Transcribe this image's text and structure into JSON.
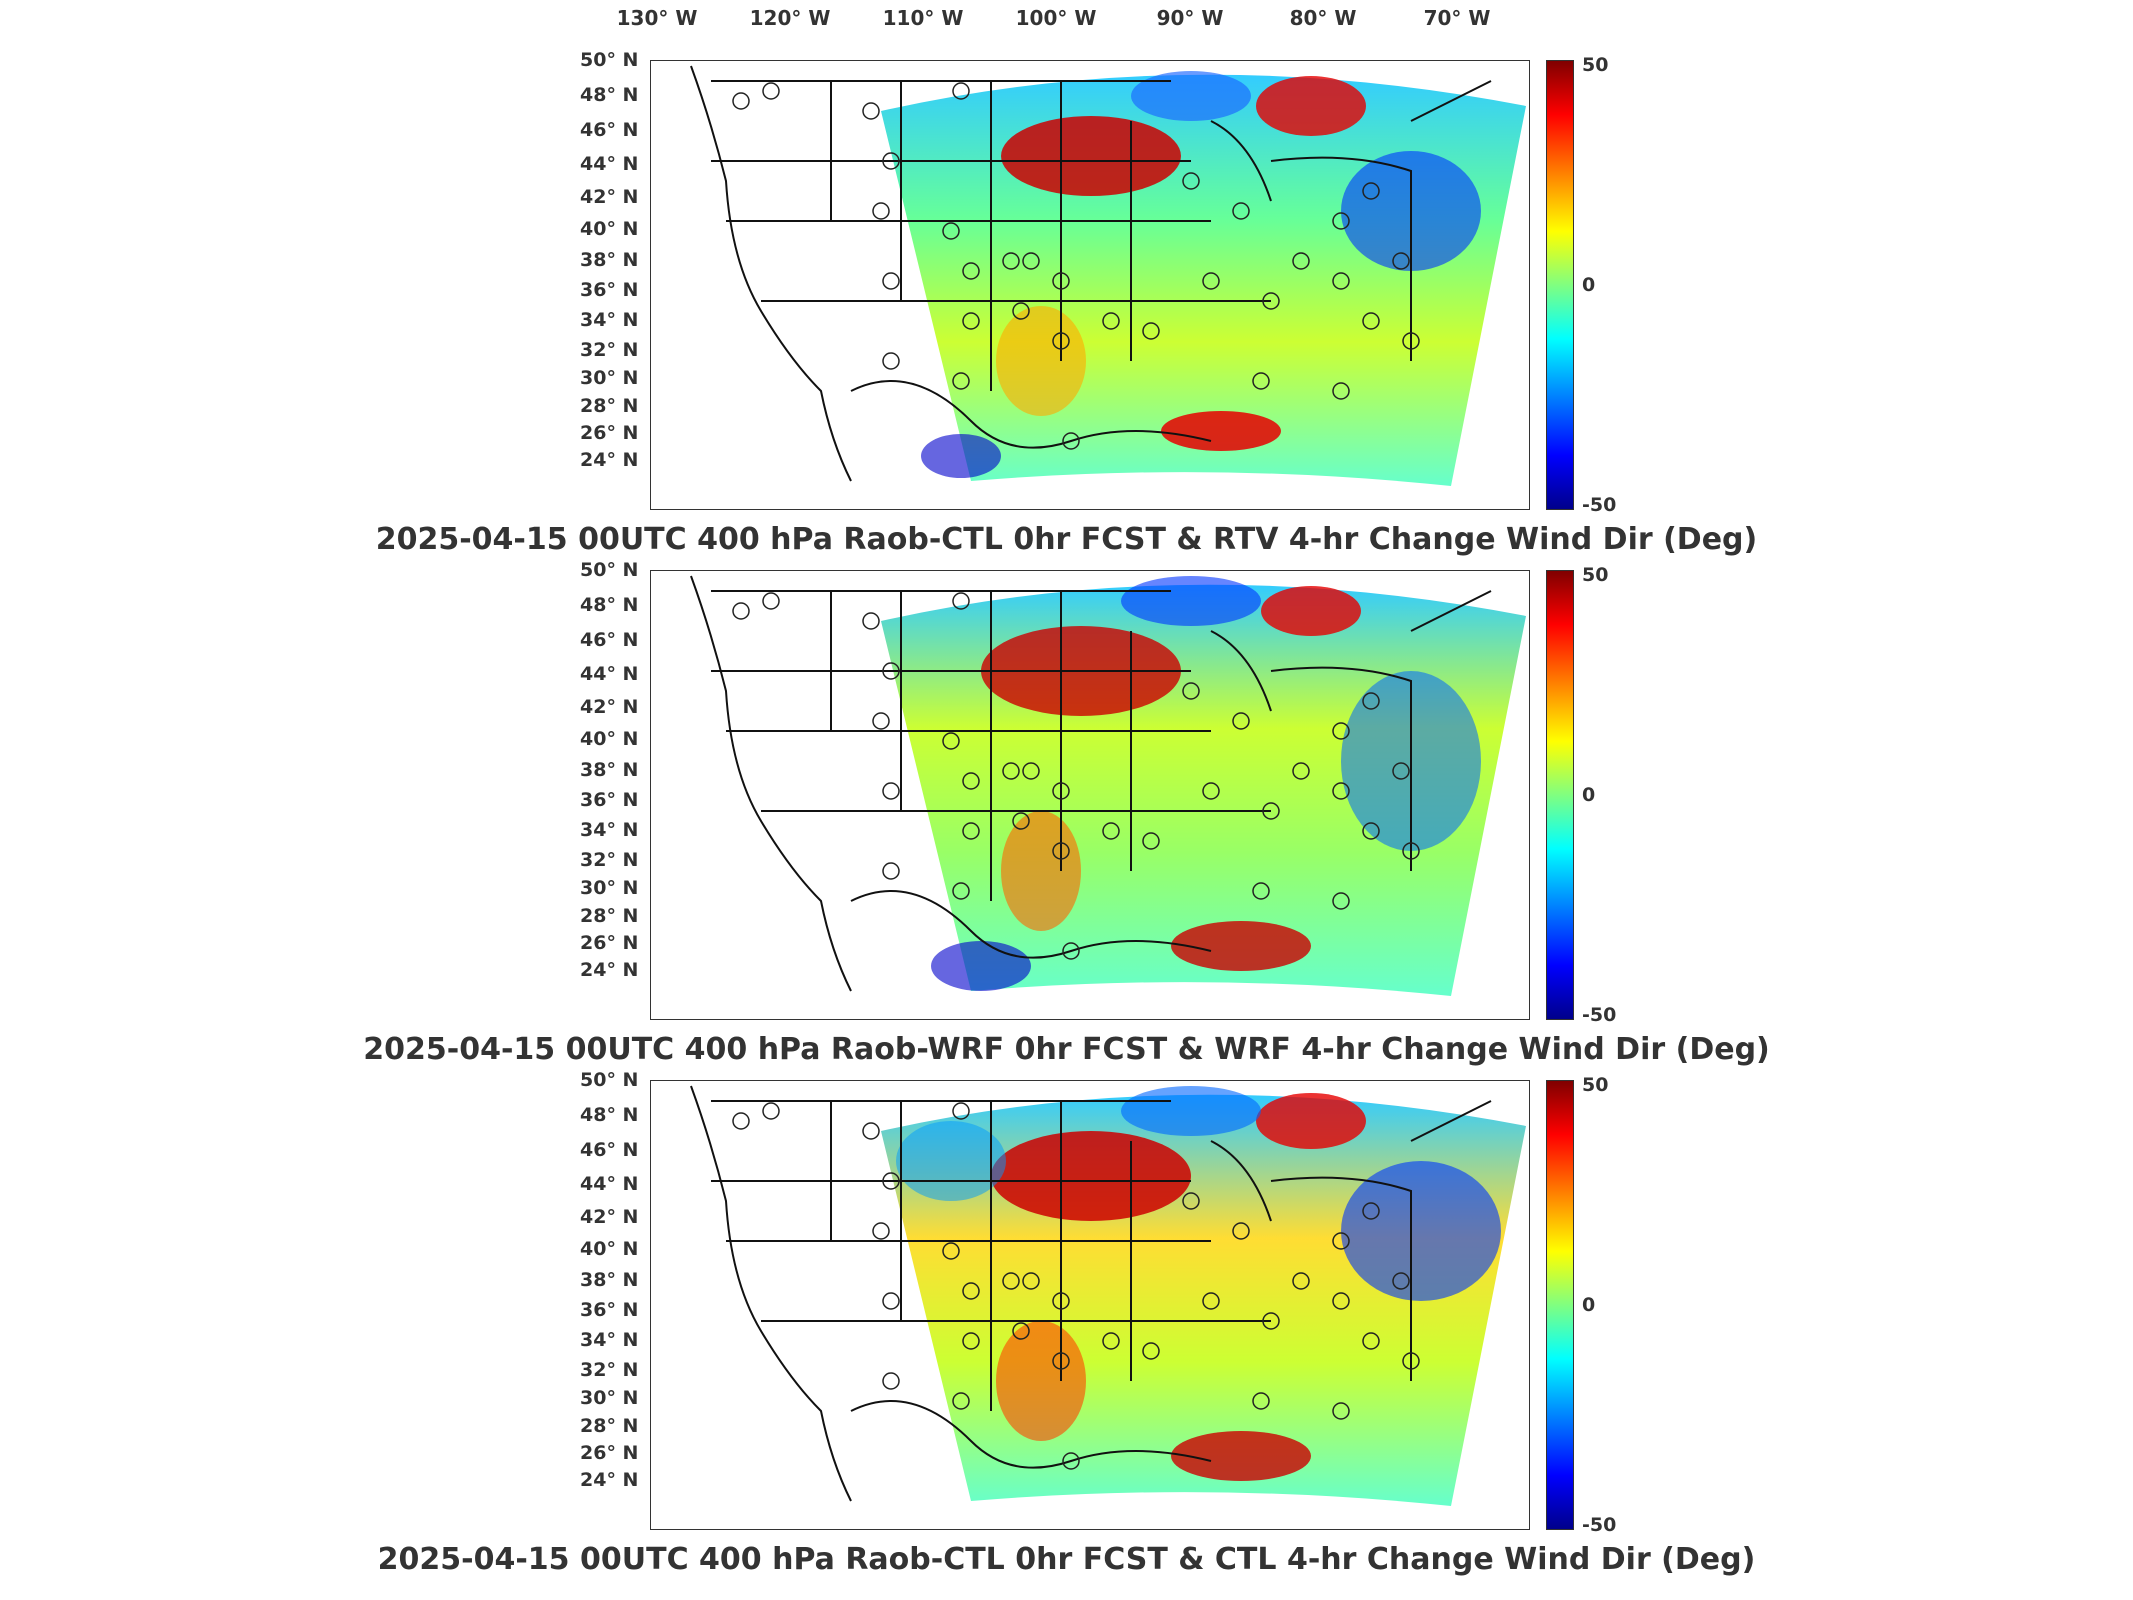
{
  "longitude_labels": [
    "130° W",
    "120° W",
    "110° W",
    "100° W",
    "90° W",
    "80° W",
    "70° W"
  ],
  "latitude_labels": [
    "50° N",
    "48° N",
    "46° N",
    "44° N",
    "42° N",
    "40° N",
    "38° N",
    "36° N",
    "34° N",
    "32° N",
    "30° N",
    "28° N",
    "26° N",
    "24° N"
  ],
  "colorbar": {
    "max_label": "50",
    "mid_label": "0",
    "min_label": "-50",
    "colors": [
      "#800000",
      "#ff0000",
      "#ff8000",
      "#ffff00",
      "#80ff80",
      "#00ffff",
      "#0080ff",
      "#0000ff",
      "#00008b"
    ]
  },
  "panels": [
    {
      "title": "2025-04-15 00UTC 400 hPa Raob-CTL 0hr FCST & RTV 4-hr Change Wind Dir (Deg)"
    },
    {
      "title": "2025-04-15 00UTC 400 hPa Raob-WRF 0hr FCST & WRF 4-hr Change Wind Dir (Deg)"
    },
    {
      "title": "2025-04-15 00UTC 400 hPa Raob-CTL 0hr FCST & CTL 4-hr Change Wind Dir (Deg)"
    }
  ]
}
